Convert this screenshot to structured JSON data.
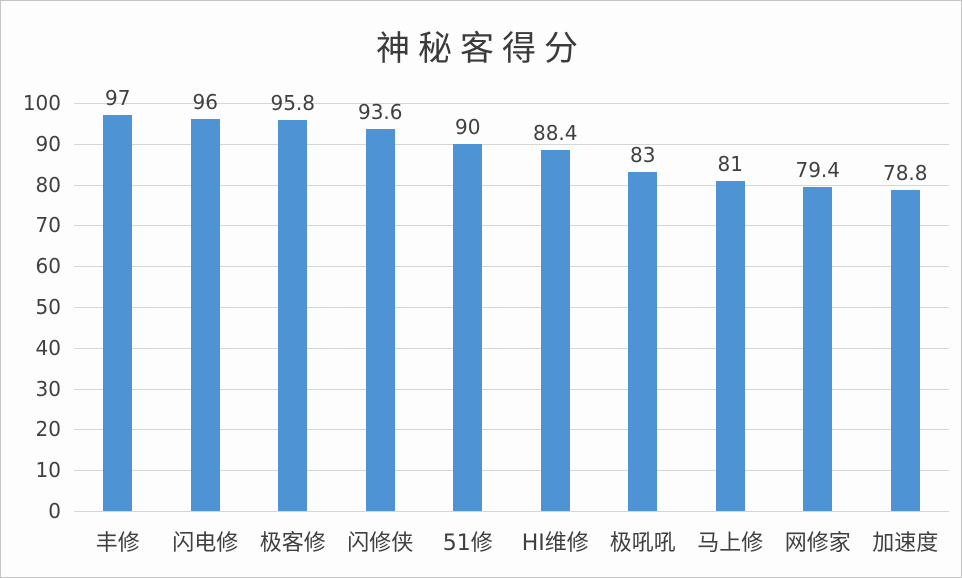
{
  "chart_data": {
    "type": "bar",
    "title": "神秘客得分",
    "categories": [
      "丰修",
      "闪电修",
      "极客修",
      "闪修侠",
      "51修",
      "HI维修",
      "极吼吼",
      "马上修",
      "网修家",
      "加速度"
    ],
    "values": [
      97,
      96,
      95.8,
      93.6,
      90,
      88.4,
      83,
      81,
      79.4,
      78.8
    ],
    "data_labels": [
      "97",
      "96",
      "95.8",
      "93.6",
      "90",
      "88.4",
      "83",
      "81",
      "79.4",
      "78.8"
    ],
    "xlabel": "",
    "ylabel": "",
    "ylim": [
      0,
      100
    ],
    "yticks": [
      0,
      10,
      20,
      30,
      40,
      50,
      60,
      70,
      80,
      90,
      100
    ],
    "grid": true,
    "legend": false,
    "colors": {
      "bar": "#4E94D4",
      "gridline": "#d6d6d6",
      "text": "#404040",
      "title_text": "#3b3b3b",
      "background": "#fdfdfd",
      "border": "#c4c4c4"
    }
  }
}
